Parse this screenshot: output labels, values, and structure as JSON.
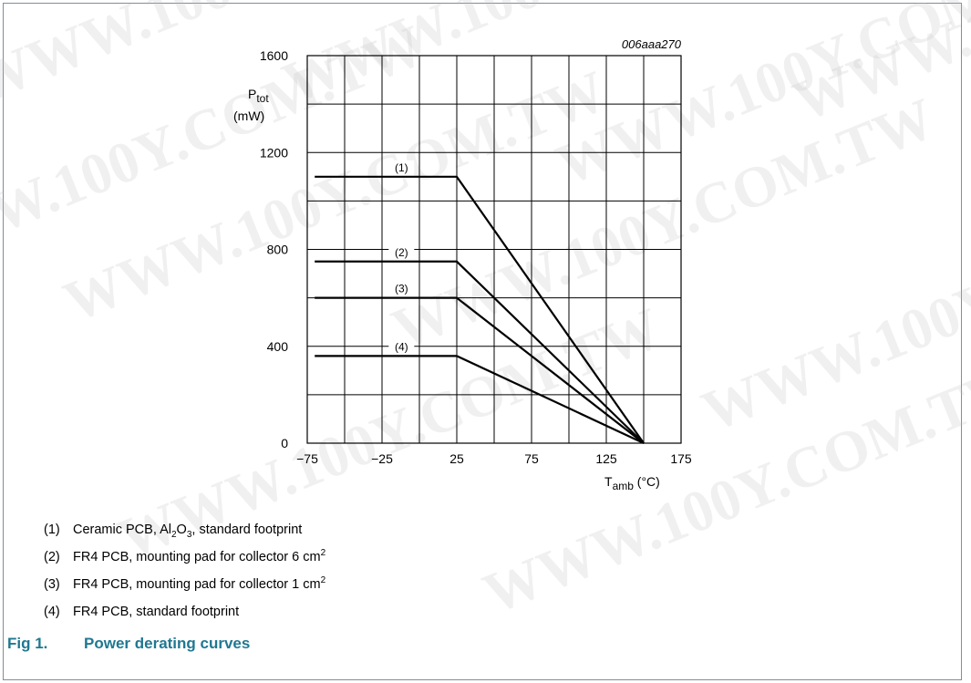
{
  "figure_code": "006aaa270",
  "watermark_text": "WWW.100Y.COM.TW",
  "chart_data": {
    "type": "line",
    "ylabel_main": "P",
    "ylabel_sub": "tot",
    "ylabel_unit": "(mW)",
    "xlabel_main": "T",
    "xlabel_sub": "amb",
    "xlabel_unit": "(°C)",
    "xlim": [
      -75,
      175
    ],
    "ylim": [
      0,
      1600
    ],
    "x_grid_step": 25,
    "y_grid_step": 200,
    "x_ticks": [
      -75,
      -25,
      25,
      75,
      125,
      175
    ],
    "x_tick_labels": [
      "−75",
      "−25",
      "25",
      "75",
      "125",
      "175"
    ],
    "y_ticks": [
      0,
      400,
      800,
      1200,
      1600
    ],
    "y_tick_labels": [
      "0",
      "400",
      "800",
      "1200",
      "1600"
    ],
    "grid": true,
    "series": [
      {
        "name": "(1)",
        "x": [
          -70,
          25,
          150
        ],
        "y": [
          1100,
          1100,
          0
        ],
        "label_x": -12
      },
      {
        "name": "(2)",
        "x": [
          -70,
          25,
          150
        ],
        "y": [
          750,
          750,
          0
        ],
        "label_x": -12
      },
      {
        "name": "(3)",
        "x": [
          -70,
          25,
          150
        ],
        "y": [
          600,
          600,
          0
        ],
        "label_x": -12
      },
      {
        "name": "(4)",
        "x": [
          -70,
          25,
          150
        ],
        "y": [
          360,
          360,
          0
        ],
        "label_x": -12
      }
    ]
  },
  "legend": [
    {
      "num": "(1)",
      "pre": "Ceramic PCB, Al",
      "sub1": "2",
      "mid": "O",
      "sub2": "3",
      "post": ", standard footprint",
      "sup": ""
    },
    {
      "num": "(2)",
      "pre": "FR4 PCB, mounting pad for collector 6 cm",
      "sub1": "",
      "mid": "",
      "sub2": "",
      "post": "",
      "sup": "2"
    },
    {
      "num": "(3)",
      "pre": "FR4 PCB, mounting pad for collector 1 cm",
      "sub1": "",
      "mid": "",
      "sub2": "",
      "post": "",
      "sup": "2"
    },
    {
      "num": "(4)",
      "pre": "FR4 PCB, standard footprint",
      "sub1": "",
      "mid": "",
      "sub2": "",
      "post": "",
      "sup": ""
    }
  ],
  "caption": {
    "fig_no": "Fig 1.",
    "title": "Power derating curves"
  }
}
